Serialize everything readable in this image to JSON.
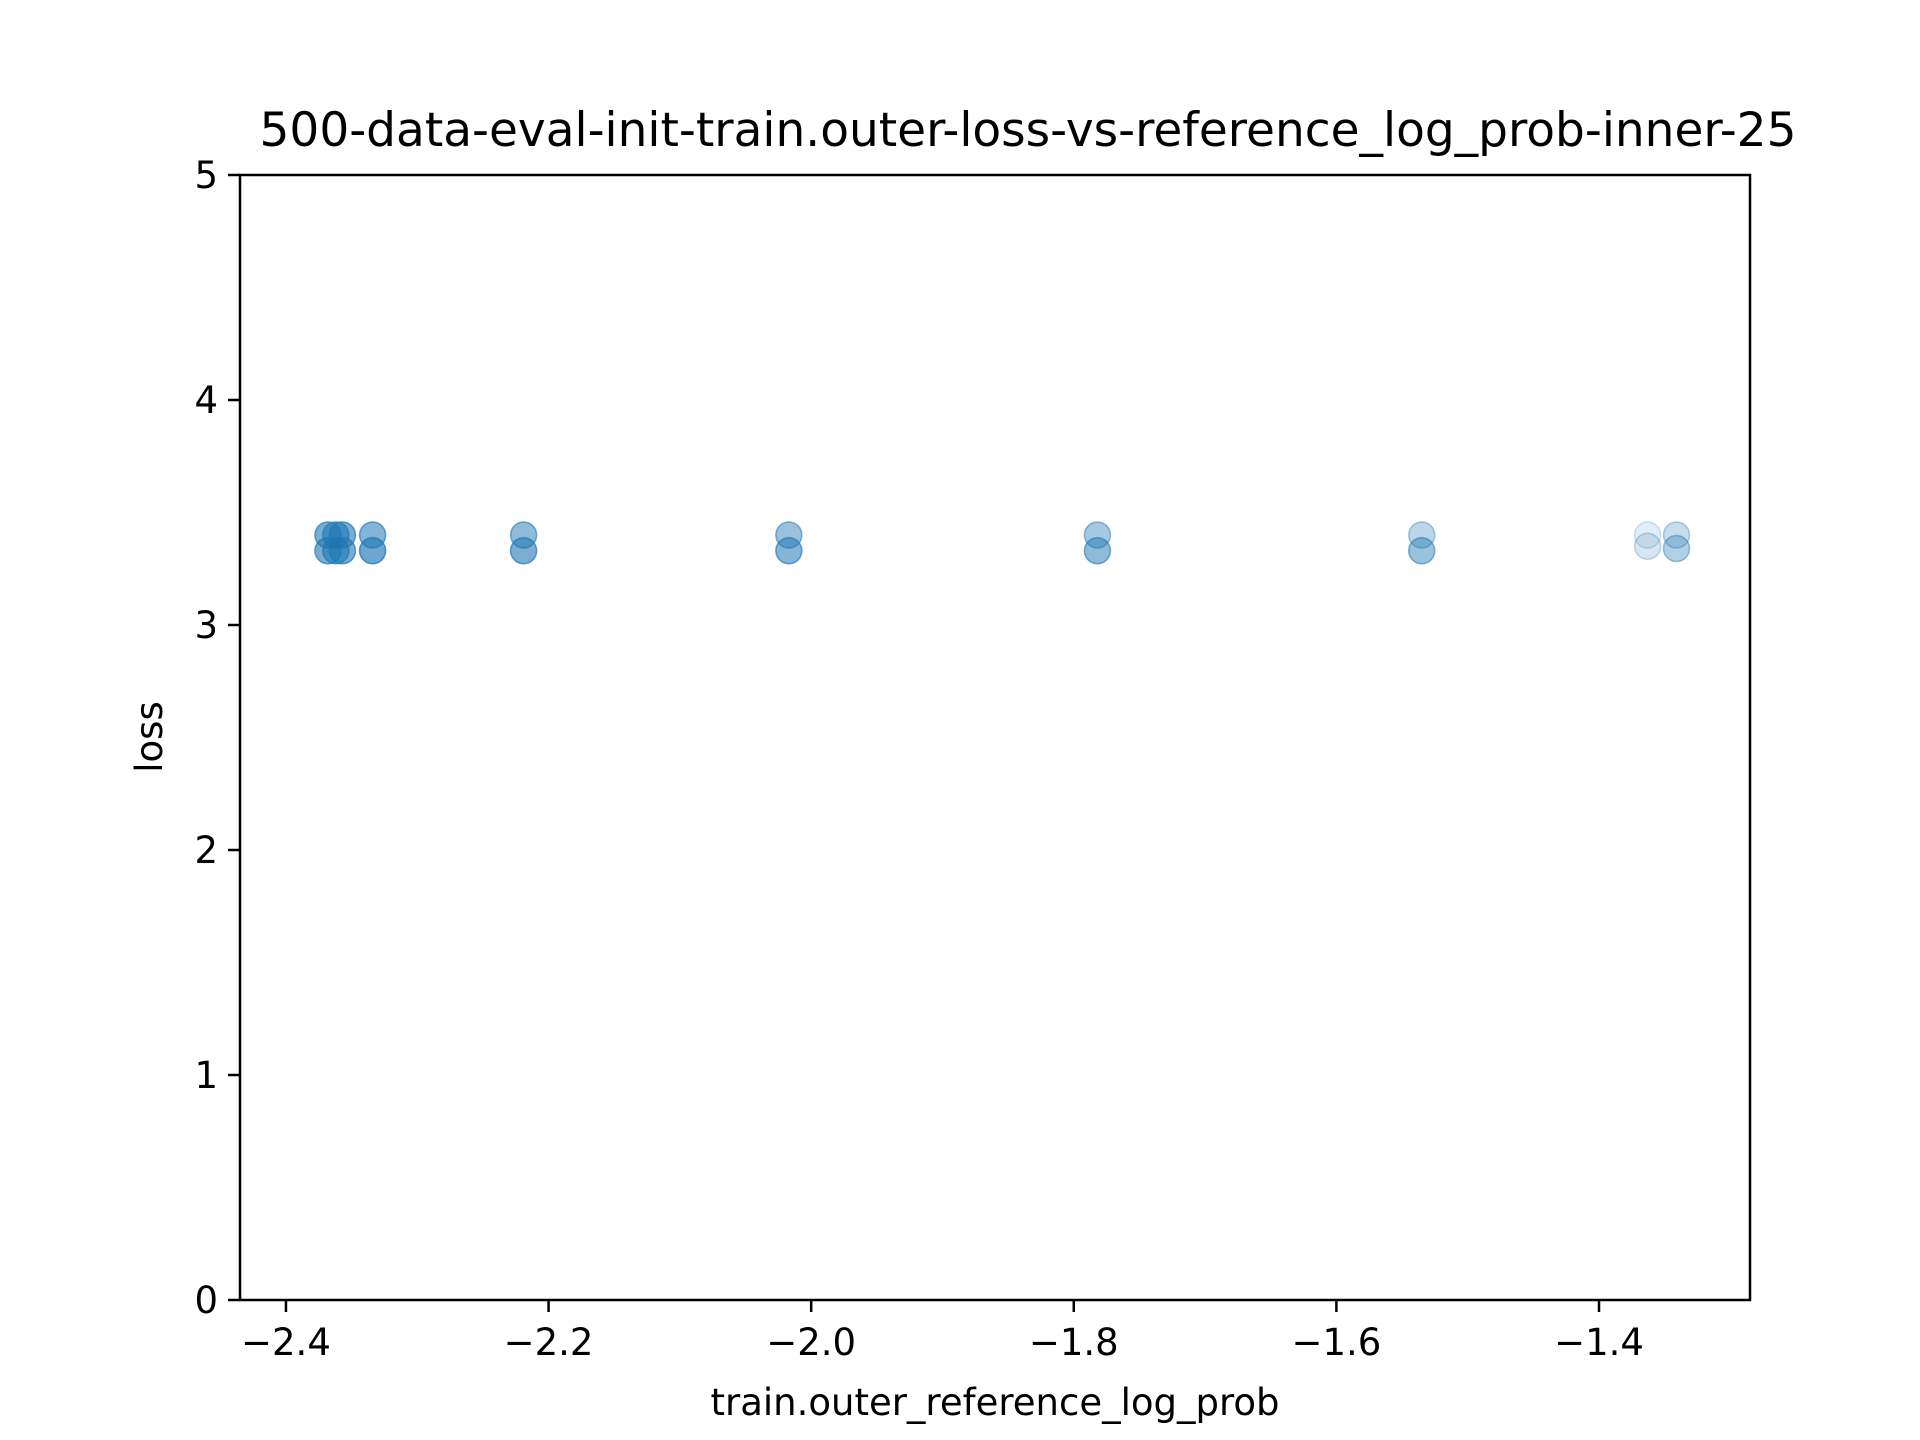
{
  "chart_data": {
    "type": "scatter",
    "title": "500-data-eval-init-train.outer-loss-vs-reference_log_prob-inner-25",
    "xlabel": "train.outer_reference_log_prob",
    "ylabel": "loss",
    "xlim": [
      -2.435,
      -1.285
    ],
    "ylim": [
      0,
      5
    ],
    "xticks": [
      {
        "value": -2.4,
        "label": "−2.4"
      },
      {
        "value": -2.2,
        "label": "−2.2"
      },
      {
        "value": -2.0,
        "label": "−2.0"
      },
      {
        "value": -1.8,
        "label": "−1.8"
      },
      {
        "value": -1.6,
        "label": "−1.6"
      },
      {
        "value": -1.4,
        "label": "−1.4"
      }
    ],
    "yticks": [
      {
        "value": 0,
        "label": "0"
      },
      {
        "value": 1,
        "label": "1"
      },
      {
        "value": 2,
        "label": "2"
      },
      {
        "value": 3,
        "label": "3"
      },
      {
        "value": 4,
        "label": "4"
      },
      {
        "value": 5,
        "label": "5"
      }
    ],
    "grid": false,
    "marker_color": "#1f77b4",
    "points": [
      {
        "x": -2.368,
        "y": 3.4,
        "alpha": 0.6
      },
      {
        "x": -2.368,
        "y": 3.33,
        "alpha": 0.6
      },
      {
        "x": -2.362,
        "y": 3.4,
        "alpha": 0.6
      },
      {
        "x": -2.362,
        "y": 3.33,
        "alpha": 0.6
      },
      {
        "x": -2.357,
        "y": 3.4,
        "alpha": 0.6
      },
      {
        "x": -2.357,
        "y": 3.33,
        "alpha": 0.6
      },
      {
        "x": -2.334,
        "y": 3.4,
        "alpha": 0.55
      },
      {
        "x": -2.334,
        "y": 3.33,
        "alpha": 0.65
      },
      {
        "x": -2.219,
        "y": 3.4,
        "alpha": 0.5
      },
      {
        "x": -2.219,
        "y": 3.33,
        "alpha": 0.6
      },
      {
        "x": -2.017,
        "y": 3.4,
        "alpha": 0.45
      },
      {
        "x": -2.017,
        "y": 3.33,
        "alpha": 0.55
      },
      {
        "x": -1.782,
        "y": 3.4,
        "alpha": 0.4
      },
      {
        "x": -1.782,
        "y": 3.33,
        "alpha": 0.5
      },
      {
        "x": -1.535,
        "y": 3.4,
        "alpha": 0.3
      },
      {
        "x": -1.535,
        "y": 3.33,
        "alpha": 0.45
      },
      {
        "x": -1.363,
        "y": 3.4,
        "alpha": 0.12
      },
      {
        "x": -1.363,
        "y": 3.35,
        "alpha": 0.18
      },
      {
        "x": -1.341,
        "y": 3.4,
        "alpha": 0.25
      },
      {
        "x": -1.341,
        "y": 3.34,
        "alpha": 0.35
      }
    ]
  }
}
